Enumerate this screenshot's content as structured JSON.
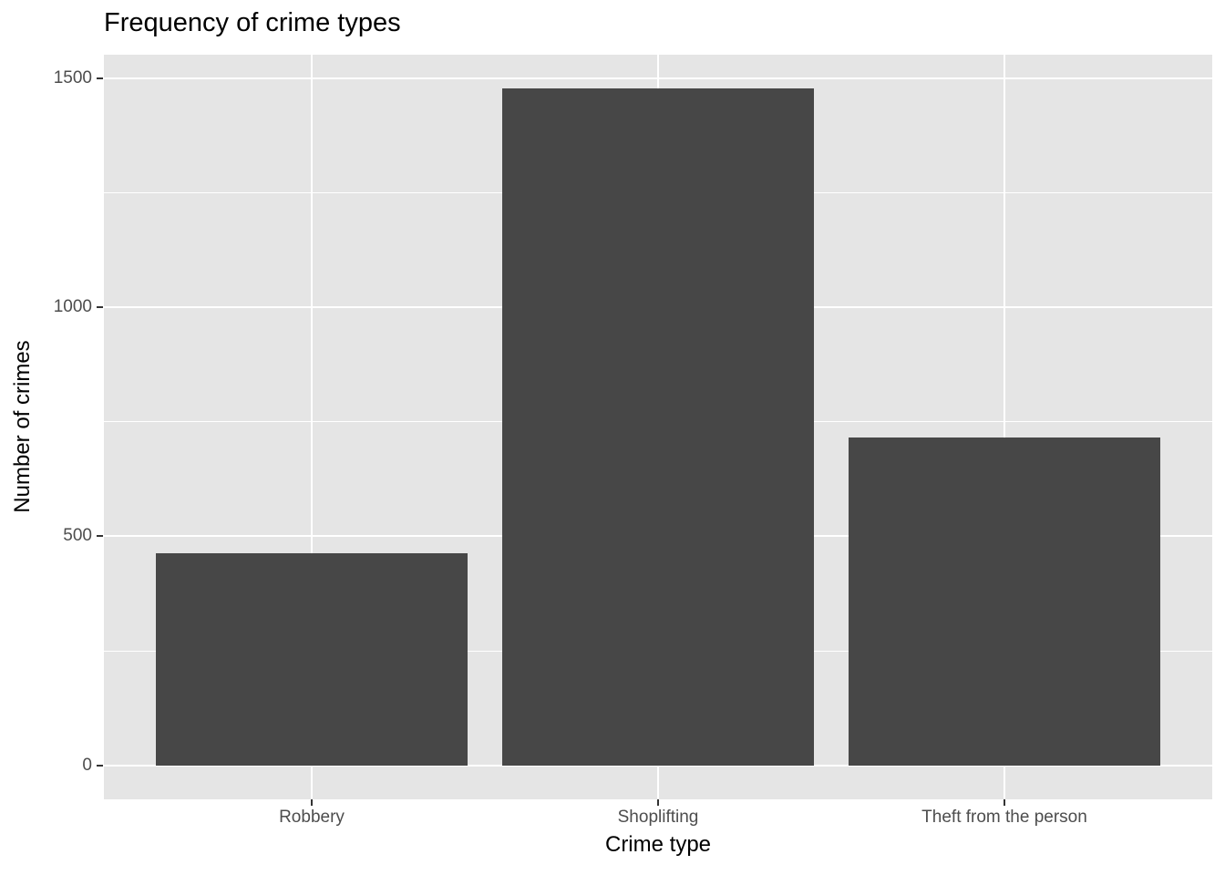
{
  "chart_data": {
    "type": "bar",
    "title": "Frequency of crime types",
    "xlabel": "Crime type",
    "ylabel": "Number of crimes",
    "categories": [
      "Robbery",
      "Shoplifting",
      "Theft from the person"
    ],
    "values": [
      463,
      1477,
      715
    ],
    "yticks": [
      0,
      500,
      1000,
      1500
    ],
    "ylim": [
      0,
      1500
    ],
    "grid": "white major and minor horizontal lines, white major vertical lines at category centers",
    "legend": "none",
    "colors": {
      "bar_fill": "#474747",
      "panel_background": "#E5E5E5",
      "gridline": "#FFFFFF",
      "tick_label": "#4D4D4D",
      "tick_mark": "#333333",
      "text": "#000000"
    }
  }
}
